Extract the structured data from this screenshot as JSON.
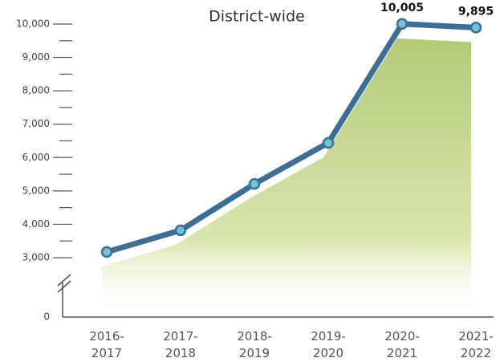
{
  "chart_data": {
    "type": "area-line",
    "title": "District-wide",
    "categories": [
      "2016-2017",
      "2017-2018",
      "2018-2019",
      "2019-2020",
      "2020-2021",
      "2021-2022"
    ],
    "values": [
      3170,
      3820,
      5210,
      6440,
      10005,
      9895
    ],
    "value_labels": [
      null,
      null,
      null,
      null,
      "10,005",
      "9,895"
    ],
    "color": "#3d6e96",
    "marker_color": "#6fc3dc",
    "fill_color": "#c9dc8e",
    "ylim": [
      0,
      10000
    ],
    "y_break": [
      0,
      3000
    ],
    "yticks": [
      0,
      {
        "value": 3000,
        "label": "3,000"
      },
      {
        "value": 4000,
        "label": "4,000"
      },
      {
        "value": 5000,
        "label": "5,000"
      },
      {
        "value": 6000,
        "label": "6,000"
      },
      {
        "value": 7000,
        "label": "7,000"
      },
      {
        "value": 8000,
        "label": "8,000"
      },
      {
        "value": 9000,
        "label": "9,000"
      },
      {
        "value": 10000,
        "label": "10,000"
      }
    ],
    "yminor_ticks": [
      3500,
      4500,
      5500,
      6500,
      7500,
      8500,
      9500
    ]
  }
}
